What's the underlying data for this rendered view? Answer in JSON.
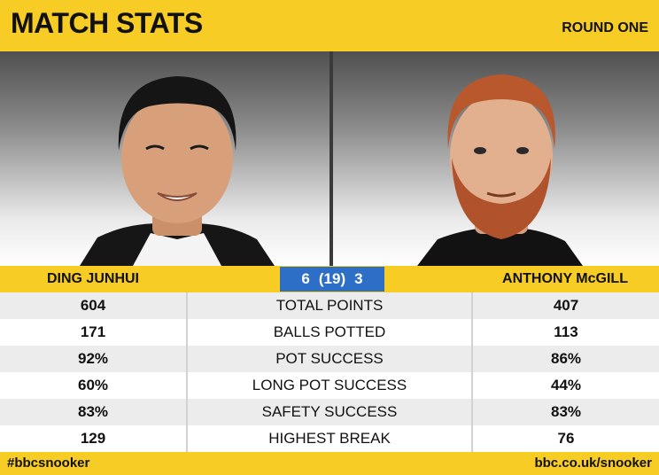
{
  "header": {
    "title": "MATCH STATS",
    "round": "ROUND ONE"
  },
  "players": {
    "left_name": "DING JUNHUI",
    "right_name": "ANTHONY McGILL"
  },
  "score": {
    "left": "6",
    "frames": "(19)",
    "right": "3"
  },
  "stats": [
    {
      "left": "604",
      "label": "TOTAL POINTS",
      "right": "407"
    },
    {
      "left": "171",
      "label": "BALLS POTTED",
      "right": "113"
    },
    {
      "left": "92%",
      "label": "POT SUCCESS",
      "right": "86%"
    },
    {
      "left": "60%",
      "label": "LONG POT SUCCESS",
      "right": "44%"
    },
    {
      "left": "83%",
      "label": "SAFETY SUCCESS",
      "right": "83%"
    },
    {
      "left": "129",
      "label": "HIGHEST BREAK",
      "right": "76"
    }
  ],
  "footer": {
    "hashtag": "#bbcsnooker",
    "website": "bbc.co.uk/snooker"
  },
  "colors": {
    "accent_yellow": "#f7cc25",
    "score_blue": "#2d6fc7"
  }
}
